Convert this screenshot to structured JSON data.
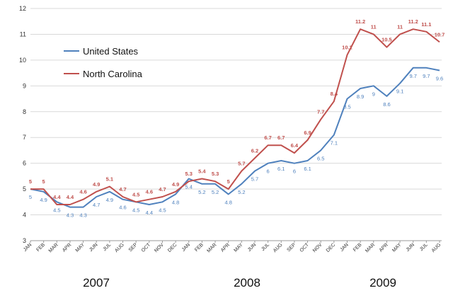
{
  "chart_data": {
    "type": "line",
    "title": "",
    "xlabel": "",
    "ylabel": "",
    "ylim": [
      3,
      12
    ],
    "yticks": [
      3,
      4,
      5,
      6,
      7,
      8,
      9,
      10,
      11,
      12
    ],
    "grid": true,
    "legend_position": "top-left",
    "categories": [
      "JAN",
      "FEB",
      "MAR",
      "APR",
      "MAY",
      "JUN",
      "JUL",
      "AUG",
      "SEP",
      "OCT",
      "NOV",
      "DEC",
      "JAN",
      "FEB",
      "MAR",
      "APR",
      "MAY",
      "JUN",
      "JUL",
      "AUG",
      "SEP",
      "OCT",
      "NOV",
      "DEC",
      "JAN",
      "FEB",
      "MAR",
      "APR",
      "MAY",
      "JUN",
      "JUL",
      "AUG"
    ],
    "years": [
      "2007",
      "2008",
      "2009"
    ],
    "series": [
      {
        "name": "United States",
        "color": "#4f81bd",
        "values": [
          5,
          4.9,
          4.5,
          4.3,
          4.3,
          4.7,
          4.9,
          4.6,
          4.5,
          4.4,
          4.5,
          4.8,
          5.4,
          5.2,
          5.2,
          4.8,
          5.2,
          5.7,
          6,
          6.1,
          6,
          6.1,
          6.5,
          7.1,
          8.5,
          8.9,
          9,
          8.6,
          9.1,
          9.7,
          9.7,
          9.6
        ]
      },
      {
        "name": "North Carolina",
        "color": "#c0504d",
        "values": [
          5,
          5,
          4.4,
          4.4,
          4.6,
          4.9,
          5.1,
          4.7,
          4.5,
          4.6,
          4.7,
          4.9,
          5.3,
          5.4,
          5.3,
          5,
          5.7,
          6.2,
          6.7,
          6.7,
          6.4,
          6.9,
          7.7,
          8.4,
          10.2,
          11.2,
          11,
          10.5,
          11,
          11.2,
          11.1,
          10.7
        ]
      }
    ]
  }
}
